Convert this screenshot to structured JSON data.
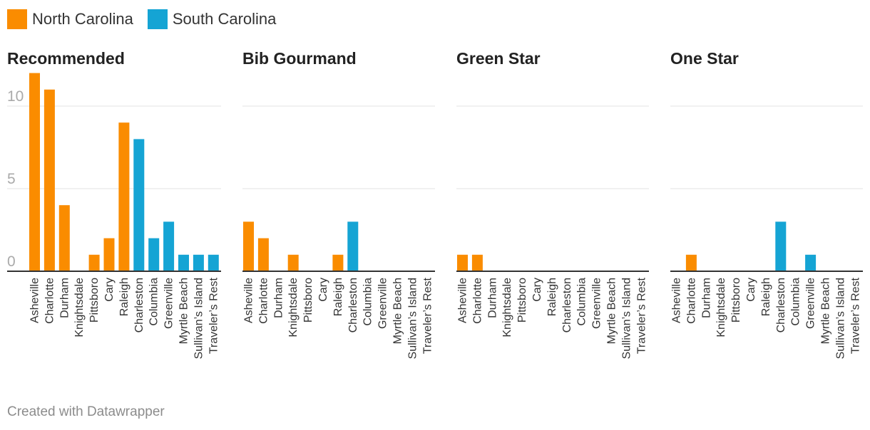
{
  "legend": [
    {
      "label": "North Carolina",
      "color": "#fa8c00"
    },
    {
      "label": "South Carolina",
      "color": "#15a4d4"
    }
  ],
  "footer": "Created with Datawrapper",
  "chart_data": [
    {
      "type": "bar",
      "title": "Recommended",
      "categories": [
        "Asheville",
        "Charlotte",
        "Durham",
        "Knightsdale",
        "Pittsboro",
        "Cary",
        "Raleigh",
        "Charleston",
        "Columbia",
        "Greenville",
        "Myrtle Beach",
        "Sullivan’s Island",
        "Traveler’s Rest"
      ],
      "category_state": [
        "North Carolina",
        "North Carolina",
        "North Carolina",
        "North Carolina",
        "North Carolina",
        "North Carolina",
        "North Carolina",
        "South Carolina",
        "South Carolina",
        "South Carolina",
        "South Carolina",
        "South Carolina",
        "South Carolina"
      ],
      "values": [
        12,
        11,
        4,
        0,
        1,
        2,
        9,
        8,
        2,
        3,
        1,
        1,
        1
      ],
      "yticks": [
        0,
        5,
        10
      ],
      "ylim": [
        0,
        12
      ]
    },
    {
      "type": "bar",
      "title": "Bib Gourmand",
      "categories": [
        "Asheville",
        "Charlotte",
        "Durham",
        "Knightsdale",
        "Pittsboro",
        "Cary",
        "Raleigh",
        "Charleston",
        "Columbia",
        "Greenville",
        "Myrtle Beach",
        "Sullivan’s Island",
        "Traveler’s Rest"
      ],
      "category_state": [
        "North Carolina",
        "North Carolina",
        "North Carolina",
        "North Carolina",
        "North Carolina",
        "North Carolina",
        "North Carolina",
        "South Carolina",
        "South Carolina",
        "South Carolina",
        "South Carolina",
        "South Carolina",
        "South Carolina"
      ],
      "values": [
        3,
        2,
        0,
        1,
        0,
        0,
        1,
        3,
        0,
        0,
        0,
        0,
        0
      ],
      "ylim": [
        0,
        12
      ]
    },
    {
      "type": "bar",
      "title": "Green Star",
      "categories": [
        "Asheville",
        "Charlotte",
        "Durham",
        "Knightsdale",
        "Pittsboro",
        "Cary",
        "Raleigh",
        "Charleston",
        "Columbia",
        "Greenville",
        "Myrtle Beach",
        "Sullivan’s Island",
        "Traveler’s Rest"
      ],
      "category_state": [
        "North Carolina",
        "North Carolina",
        "North Carolina",
        "North Carolina",
        "North Carolina",
        "North Carolina",
        "North Carolina",
        "South Carolina",
        "South Carolina",
        "South Carolina",
        "South Carolina",
        "South Carolina",
        "South Carolina"
      ],
      "values": [
        1,
        1,
        0,
        0,
        0,
        0,
        0,
        0,
        0,
        0,
        0,
        0,
        0
      ],
      "ylim": [
        0,
        12
      ]
    },
    {
      "type": "bar",
      "title": "One Star",
      "categories": [
        "Asheville",
        "Charlotte",
        "Durham",
        "Knightsdale",
        "Pittsboro",
        "Cary",
        "Raleigh",
        "Charleston",
        "Columbia",
        "Greenville",
        "Myrtle Beach",
        "Sullivan’s Island",
        "Traveler’s Rest"
      ],
      "category_state": [
        "North Carolina",
        "North Carolina",
        "North Carolina",
        "North Carolina",
        "North Carolina",
        "North Carolina",
        "North Carolina",
        "South Carolina",
        "South Carolina",
        "South Carolina",
        "South Carolina",
        "South Carolina",
        "South Carolina"
      ],
      "values": [
        0,
        1,
        0,
        0,
        0,
        0,
        0,
        3,
        0,
        1,
        0,
        0,
        0
      ],
      "ylim": [
        0,
        12
      ]
    }
  ]
}
